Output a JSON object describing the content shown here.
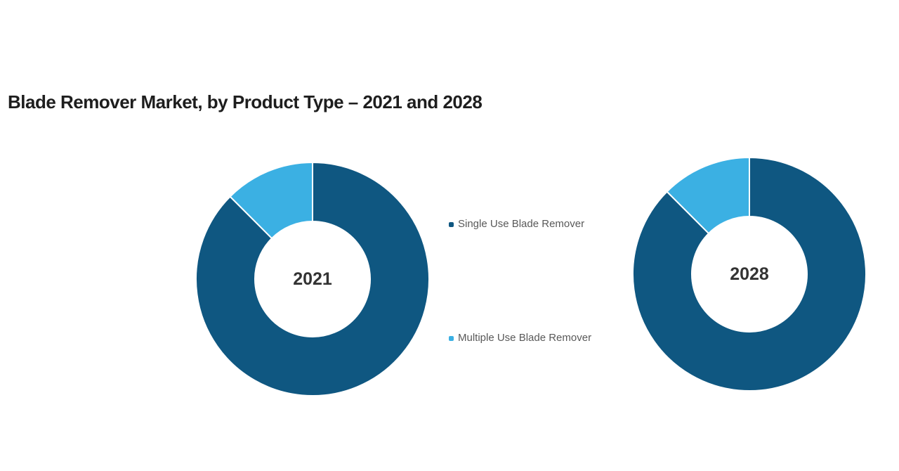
{
  "title": "Blade Remover Market, by Product Type – 2021 and 2028",
  "legend": {
    "items": [
      {
        "label": "Single Use Blade Remover",
        "color": "#0f5781"
      },
      {
        "label": "Multiple Use Blade Remover",
        "color": "#3bb0e3"
      }
    ]
  },
  "colors": {
    "single_use": "#0f5781",
    "multiple_use": "#3bb0e3",
    "slice_border": "#ffffff",
    "title_text": "#1e1e1e",
    "legend_text": "#595959",
    "center_label_text": "#333333",
    "background": "#ffffff"
  },
  "chart_data": [
    {
      "type": "pie",
      "subtype": "donut",
      "center_label": "2021",
      "categories": [
        "Single Use Blade Remover",
        "Multiple Use Blade Remover"
      ],
      "values": [
        87.5,
        12.5
      ],
      "unit": "%",
      "colors": [
        "#0f5781",
        "#3bb0e3"
      ],
      "start_angle_deg": 0,
      "clockwise": true,
      "inner_radius_ratio": 0.49,
      "slice_border_color": "#ffffff",
      "legend_position": "center-between-charts",
      "data_labels": "none"
    },
    {
      "type": "pie",
      "subtype": "donut",
      "center_label": "2028",
      "categories": [
        "Single Use Blade Remover",
        "Multiple Use Blade Remover"
      ],
      "values": [
        87.5,
        12.5
      ],
      "unit": "%",
      "colors": [
        "#0f5781",
        "#3bb0e3"
      ],
      "start_angle_deg": 0,
      "clockwise": true,
      "inner_radius_ratio": 0.49,
      "slice_border_color": "#ffffff",
      "legend_position": "center-between-charts",
      "data_labels": "none"
    }
  ]
}
